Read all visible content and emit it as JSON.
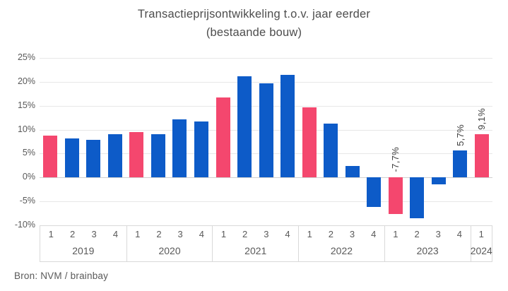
{
  "source_label": "Bron: NVM / brainbay",
  "colors": {
    "bar_default": "#0D5BC8",
    "bar_highlight_q1": "#F4476E",
    "gridline": "#e7e7e7",
    "zero_line": "#cfcfcf",
    "text": "#595959",
    "title_text": "#4d4d4d"
  },
  "chart_data": {
    "type": "bar",
    "title": "Transactieprijsontwikkeling t.o.v. jaar eerder",
    "subtitle": "(bestaande bouw)",
    "xlabel": "",
    "ylabel": "",
    "ylim": [
      -10,
      25
    ],
    "ytick_step": 5,
    "ytick_labels": [
      "25%",
      "20%",
      "15%",
      "10%",
      "5%",
      "0%",
      "-5%",
      "-10%"
    ],
    "grid": true,
    "legend": "none",
    "highlight_rule": "first quarter of each year shown in pink, other quarters in blue",
    "groups": [
      {
        "year": "2019",
        "quarters": [
          "1",
          "2",
          "3",
          "4"
        ],
        "values": [
          8.8,
          8.1,
          7.9,
          9.1
        ]
      },
      {
        "year": "2020",
        "quarters": [
          "1",
          "2",
          "3",
          "4"
        ],
        "values": [
          9.5,
          9.1,
          12.1,
          11.7
        ]
      },
      {
        "year": "2021",
        "quarters": [
          "1",
          "2",
          "3",
          "4"
        ],
        "values": [
          16.8,
          21.1,
          19.7,
          21.4
        ]
      },
      {
        "year": "2022",
        "quarters": [
          "1",
          "2",
          "3",
          "4"
        ],
        "values": [
          14.6,
          11.3,
          2.4,
          -6.1
        ]
      },
      {
        "year": "2023",
        "quarters": [
          "1",
          "2",
          "3",
          "4"
        ],
        "values": [
          -7.7,
          -8.5,
          -1.4,
          5.7
        ]
      },
      {
        "year": "2024",
        "quarters": [
          "1"
        ],
        "values": [
          9.1
        ]
      }
    ],
    "annotations": [
      {
        "year": "2023",
        "quarter": "1",
        "text": "-7,7%"
      },
      {
        "year": "2023",
        "quarter": "4",
        "text": "5,7%"
      },
      {
        "year": "2024",
        "quarter": "1",
        "text": "9,1%"
      }
    ]
  }
}
